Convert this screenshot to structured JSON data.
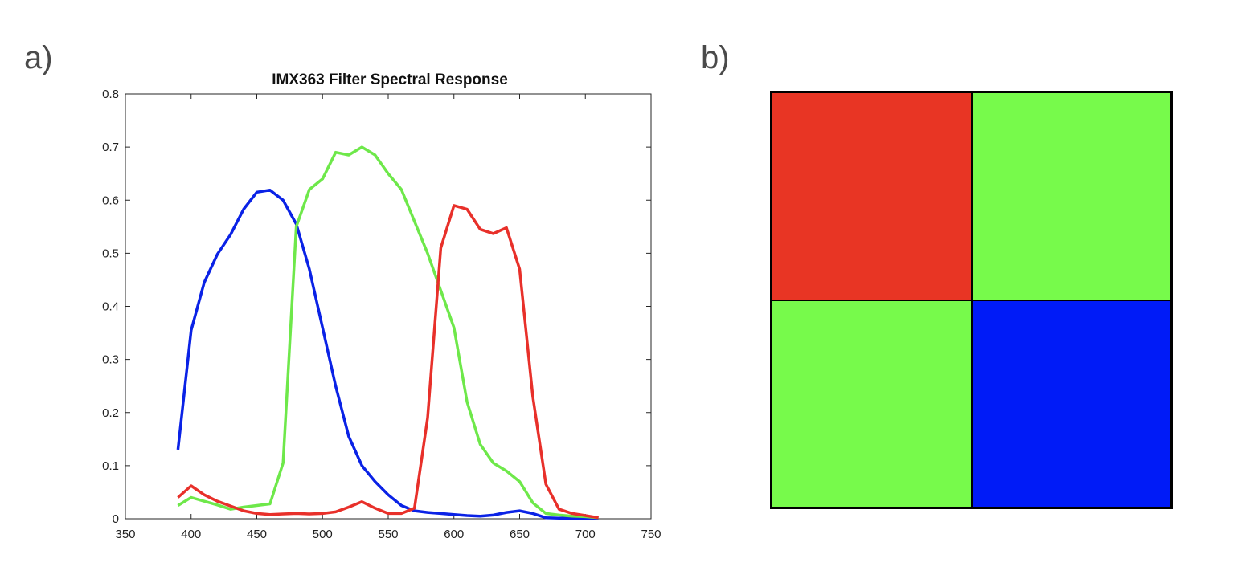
{
  "panel_a": {
    "label": "a)"
  },
  "panel_b": {
    "label": "b)"
  },
  "chart_data": {
    "type": "line",
    "title": "IMX363 Filter Spectral Response",
    "xlabel": "",
    "ylabel": "",
    "xlim": [
      350,
      750
    ],
    "ylim": [
      0,
      0.8
    ],
    "xticks": [
      350,
      400,
      450,
      500,
      550,
      600,
      650,
      700,
      750
    ],
    "yticks": [
      0,
      0.1,
      0.2,
      0.3,
      0.4,
      0.5,
      0.6,
      0.7,
      0.8
    ],
    "xtick_labels": [
      "350",
      "400",
      "450",
      "500",
      "550",
      "600",
      "650",
      "700",
      "750"
    ],
    "ytick_labels": [
      "0",
      "0.1",
      "0.2",
      "0.3",
      "0.4",
      "0.5",
      "0.6",
      "0.7",
      "0.8"
    ],
    "grid": false,
    "x": [
      390,
      400,
      410,
      420,
      430,
      440,
      450,
      460,
      470,
      480,
      490,
      500,
      510,
      520,
      530,
      540,
      550,
      560,
      570,
      580,
      590,
      600,
      610,
      620,
      630,
      640,
      650,
      660,
      670,
      680,
      690,
      700,
      710
    ],
    "series": [
      {
        "color": "#0a22e6",
        "values": [
          0.13,
          0.355,
          0.445,
          0.498,
          0.535,
          0.583,
          0.615,
          0.619,
          0.6,
          0.555,
          0.47,
          0.36,
          0.25,
          0.155,
          0.1,
          0.07,
          0.045,
          0.025,
          0.015,
          0.012,
          0.01,
          0.008,
          0.006,
          0.005,
          0.007,
          0.012,
          0.015,
          0.01,
          0.002,
          0.001,
          0.001,
          0.001,
          0.001
        ]
      },
      {
        "color": "#6ee84a",
        "values": [
          0.025,
          0.04,
          0.033,
          0.026,
          0.018,
          0.022,
          0.025,
          0.028,
          0.105,
          0.55,
          0.62,
          0.64,
          0.69,
          0.685,
          0.7,
          0.685,
          0.65,
          0.62,
          0.56,
          0.5,
          0.43,
          0.36,
          0.22,
          0.14,
          0.105,
          0.09,
          0.07,
          0.03,
          0.01,
          0.007,
          0.005,
          0.004,
          0.002
        ]
      },
      {
        "color": "#e8302a",
        "values": [
          0.04,
          0.062,
          0.045,
          0.033,
          0.024,
          0.015,
          0.01,
          0.008,
          0.009,
          0.01,
          0.009,
          0.01,
          0.013,
          0.022,
          0.032,
          0.02,
          0.01,
          0.01,
          0.02,
          0.19,
          0.51,
          0.59,
          0.583,
          0.545,
          0.537,
          0.548,
          0.47,
          0.23,
          0.065,
          0.018,
          0.01,
          0.006,
          0.002
        ]
      }
    ]
  },
  "bayer_pattern": {
    "cells": [
      {
        "color": "#e83524"
      },
      {
        "color": "#77fa4b"
      },
      {
        "color": "#77fa4b"
      },
      {
        "color": "#001bf7"
      }
    ]
  }
}
